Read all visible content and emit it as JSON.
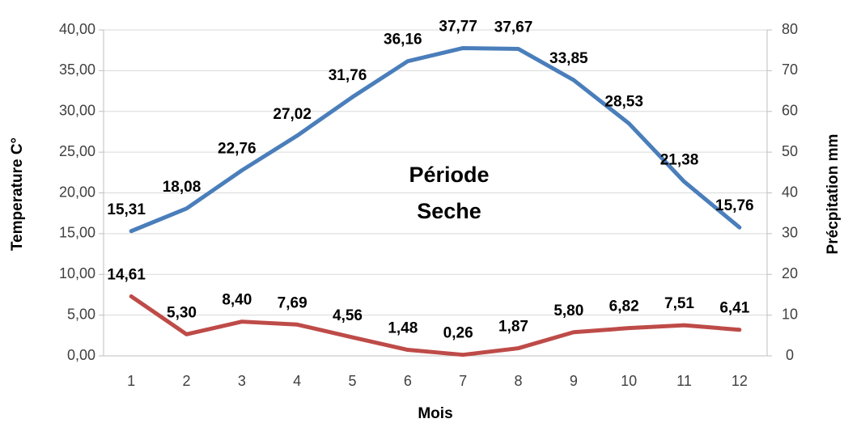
{
  "chart_data": {
    "type": "line",
    "x_label": "Mois",
    "y_label": "Temperature C°",
    "y2_label": "Précpitation mm",
    "annotations": [
      "Période",
      "Seche"
    ],
    "categories": [
      "1",
      "2",
      "3",
      "4",
      "5",
      "6",
      "7",
      "8",
      "9",
      "10",
      "11",
      "12"
    ],
    "series": [
      {
        "name": "Temperature",
        "color": "#4a7ebb",
        "axis": "y",
        "values": [
          15.31,
          18.08,
          22.76,
          27.02,
          31.76,
          36.16,
          37.77,
          37.67,
          33.85,
          28.53,
          21.38,
          15.76
        ],
        "value_labels": [
          "15,31",
          "18,08",
          "22,76",
          "27,02",
          "31,76",
          "36,16",
          "37,77",
          "37,67",
          "33,85",
          "28,53",
          "21,38",
          "15,76"
        ]
      },
      {
        "name": "Précipitation",
        "color": "#be4b48",
        "axis": "y2",
        "values": [
          14.61,
          5.3,
          8.4,
          7.69,
          4.56,
          1.48,
          0.26,
          1.87,
          5.8,
          6.82,
          7.51,
          6.41
        ],
        "value_labels": [
          "14,61",
          "5,30",
          "8,40",
          "7,69",
          "4,56",
          "1,48",
          "0,26",
          "1,87",
          "5,80",
          "6,82",
          "7,51",
          "6,41"
        ]
      }
    ],
    "ylim": [
      0,
      40
    ],
    "yticks": [
      {
        "value": 0,
        "label": "0,00"
      },
      {
        "value": 5,
        "label": "5,00"
      },
      {
        "value": 10,
        "label": "10,00"
      },
      {
        "value": 15,
        "label": "15,00"
      },
      {
        "value": 20,
        "label": "20,00"
      },
      {
        "value": 25,
        "label": "25,00"
      },
      {
        "value": 30,
        "label": "30,00"
      },
      {
        "value": 35,
        "label": "35,00"
      },
      {
        "value": 40,
        "label": "40,00"
      }
    ],
    "y2lim": [
      0,
      80
    ],
    "y2ticks": [
      0,
      10,
      20,
      30,
      40,
      50,
      60,
      70,
      80
    ],
    "grid": true
  }
}
